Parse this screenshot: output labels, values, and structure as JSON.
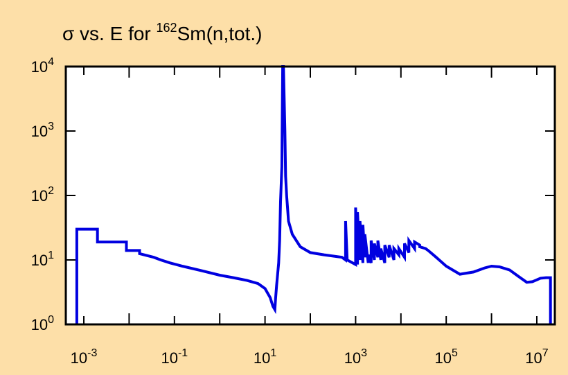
{
  "chart_data": {
    "type": "line",
    "title_prefix": "σ vs. E for ",
    "title_sup": "162",
    "title_suffix": "Sm(n,tot.)",
    "xlabel": "",
    "ylabel": "",
    "x_scale": "log",
    "y_scale": "log",
    "xlim": [
      0.0004,
      25000000
    ],
    "ylim": [
      1,
      10000
    ],
    "grid": false,
    "line_color": "#0000e0",
    "frame_color": "#000000",
    "plot_background": "#ffffff",
    "page_background": "#fddfa8",
    "x_ticks": [
      {
        "base": "10",
        "exp": "-3",
        "value": 0.001
      },
      {
        "base": "10",
        "exp": "-1",
        "value": 0.1
      },
      {
        "base": "10",
        "exp": "1",
        "value": 10
      },
      {
        "base": "10",
        "exp": "3",
        "value": 1000
      },
      {
        "base": "10",
        "exp": "5",
        "value": 100000
      },
      {
        "base": "10",
        "exp": "7",
        "value": 10000000
      }
    ],
    "y_ticks": [
      {
        "base": "10",
        "exp": "0",
        "value": 1
      },
      {
        "base": "10",
        "exp": "1",
        "value": 10
      },
      {
        "base": "10",
        "exp": "2",
        "value": 100
      },
      {
        "base": "10",
        "exp": "3",
        "value": 1000
      },
      {
        "base": "10",
        "exp": "4",
        "value": 10000
      }
    ],
    "series": [
      {
        "x": [
          0.0007,
          0.0007,
          0.002,
          0.002,
          0.0087,
          0.0087,
          0.017,
          0.017,
          0.035,
          0.05,
          0.08,
          0.15,
          0.4,
          1.0,
          2.0,
          4.0,
          7.0,
          10.0,
          13.0,
          14.0,
          15.0,
          16.5,
          17.0,
          18.0,
          20.0,
          21.0,
          22.0,
          23.5,
          24.5,
          25.5,
          27.5,
          28.5,
          30.0,
          33.0,
          40.0,
          60.0,
          100.0,
          200.0,
          500.0,
          600.0,
          600.0,
          650.0,
          650.0,
          1000.0,
          1000.0,
          1100.0,
          1100.0,
          1250.0,
          1250.0,
          1450.0,
          1450.0,
          1600.0,
          1600.0,
          1900.0,
          1900.0,
          2200.0,
          2200.0,
          2600.0,
          2600.0,
          3100.0,
          3100.0,
          3600.0,
          3600.0,
          4400.0,
          4400.0,
          5500.0,
          5500.0,
          7000.0,
          7000.0,
          9000.0,
          9000.0,
          12000.0,
          12000.0,
          15000.0,
          15000.0,
          20000.0,
          20000.0,
          26000.0,
          26000.0,
          35000.0,
          40000.0,
          60000.0,
          100000.0,
          200000.0,
          400000.0,
          700000.0,
          1000000.0,
          1500000.0,
          2500000.0,
          4000000.0,
          6000000.0,
          8000000.0,
          12000000.0,
          16000000.0,
          20000000.0,
          20000000.0
        ],
        "y": [
          1,
          30,
          30,
          19,
          19,
          14,
          14,
          12.5,
          11,
          10,
          9,
          8,
          6.8,
          5.8,
          5.3,
          4.8,
          4.3,
          3.6,
          2.6,
          2.2,
          1.9,
          1.7,
          2.4,
          4,
          9,
          20,
          80,
          280,
          10000,
          10000,
          1000,
          200,
          100,
          40,
          25,
          16,
          13,
          12,
          11,
          10,
          40,
          10,
          10,
          8.5,
          65,
          8.5,
          55,
          10,
          40,
          9,
          35,
          11,
          25,
          9,
          12,
          9,
          20,
          10,
          18,
          11,
          20,
          10,
          15,
          9,
          17,
          11,
          17,
          10,
          15,
          12,
          15,
          11,
          18,
          13,
          20,
          15,
          19,
          17,
          16,
          15,
          14,
          11,
          8,
          6,
          6.5,
          7.5,
          8,
          7.8,
          7,
          5.5,
          4.5,
          4.6,
          5.2,
          5.3,
          5.3,
          1
        ]
      }
    ]
  }
}
